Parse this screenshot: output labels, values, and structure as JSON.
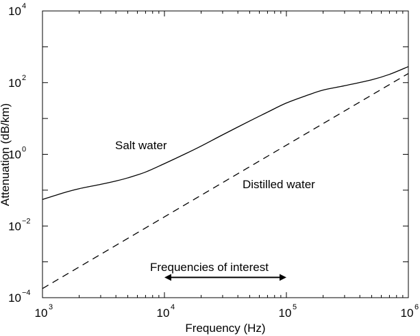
{
  "chart_data": {
    "type": "line",
    "xlabel": "Frequency (Hz)",
    "ylabel": "Attenuation (dB/km)",
    "xscale": "log",
    "yscale": "log",
    "xlim": [
      1000,
      1000000
    ],
    "ylim": [
      0.0001,
      10000
    ],
    "x_ticks": [
      {
        "value": 1000,
        "base": "10",
        "exp": "3"
      },
      {
        "value": 10000,
        "base": "10",
        "exp": "4"
      },
      {
        "value": 100000,
        "base": "10",
        "exp": "5"
      },
      {
        "value": 1000000,
        "base": "10",
        "exp": "6"
      }
    ],
    "y_ticks": [
      {
        "value": 0.0001,
        "base": "10",
        "exp": "−4"
      },
      {
        "value": 0.01,
        "base": "10",
        "exp": "−2"
      },
      {
        "value": 1,
        "base": "10",
        "exp": "0"
      },
      {
        "value": 100,
        "base": "10",
        "exp": "2"
      },
      {
        "value": 10000,
        "base": "10",
        "exp": "4"
      }
    ],
    "grid": false,
    "series": [
      {
        "name": "Salt water",
        "style": "solid",
        "color": "#000000",
        "x": [
          1000,
          1500,
          2000,
          3000,
          4000,
          5000,
          7000,
          10000,
          15000,
          20000,
          30000,
          50000,
          70000,
          100000,
          150000,
          200000,
          300000,
          500000,
          700000,
          1000000
        ],
        "y": [
          0.055,
          0.085,
          0.11,
          0.145,
          0.18,
          0.22,
          0.32,
          0.55,
          1.05,
          1.7,
          3.5,
          8.5,
          15,
          27,
          45,
          62,
          82,
          120,
          170,
          280
        ]
      },
      {
        "name": "Distilled water",
        "style": "dashed",
        "color": "#000000",
        "x": [
          1000,
          1000000
        ],
        "y": [
          0.00018,
          180
        ]
      }
    ],
    "annotations": [
      {
        "text": "Frequencies of interest",
        "arrow_from": 10000,
        "arrow_to": 100000,
        "arrow_y": 0.0005
      }
    ]
  }
}
